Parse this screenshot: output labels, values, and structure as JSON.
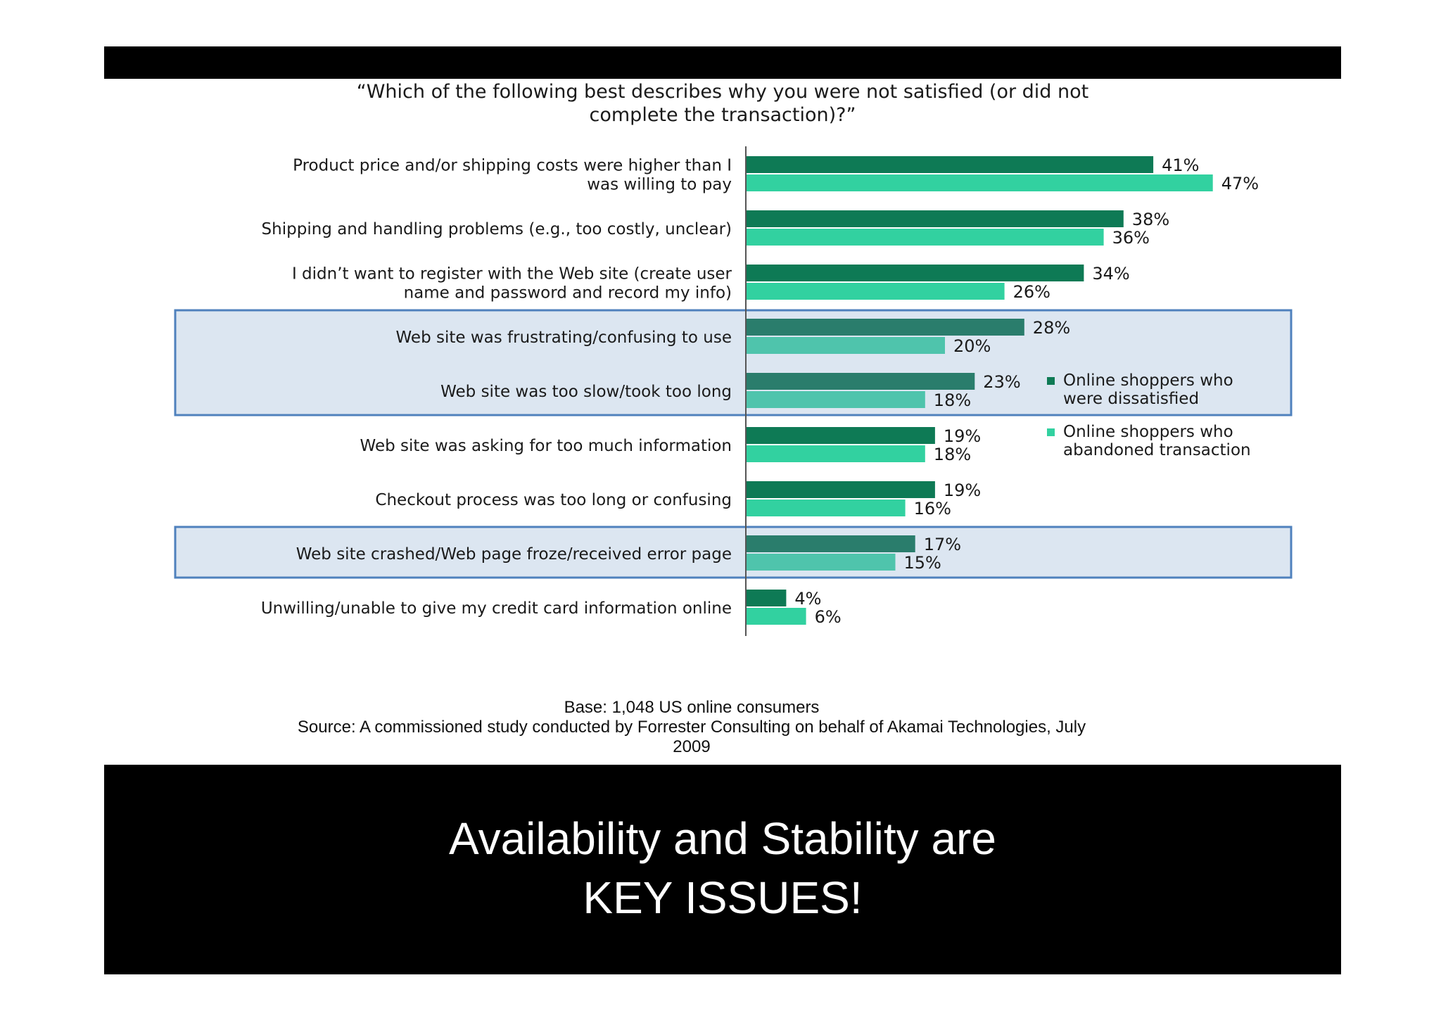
{
  "question": {
    "line1": "“Which of the following best describes why you were not satisfied (or did not",
    "line2": "complete the transaction)?”"
  },
  "chart_data": {
    "type": "bar",
    "orientation": "horizontal",
    "categories": [
      [
        "Product price and/or shipping costs were higher than I",
        "was willing to pay"
      ],
      [
        "Shipping and handling problems (e.g., too costly, unclear)"
      ],
      [
        "I didn’t want to register with the Web site (create user",
        "name and password and record my info)"
      ],
      [
        "Web site was frustrating/confusing to use"
      ],
      [
        "Web site was too slow/took too long"
      ],
      [
        "Web site was asking for too much information"
      ],
      [
        "Checkout process was too long or confusing"
      ],
      [
        "Web site crashed/Web page froze/received error page"
      ],
      [
        "Unwilling/unable to give my credit card information online"
      ]
    ],
    "series": [
      {
        "name": "Online shoppers who were dissatisfied",
        "legend_lines": [
          "Online shoppers who",
          "were dissatisfied"
        ],
        "color": "#0e7a55",
        "values": [
          41,
          38,
          34,
          28,
          23,
          19,
          19,
          17,
          4
        ]
      },
      {
        "name": "Online shoppers who abandoned transaction",
        "legend_lines": [
          "Online shoppers who",
          "abandoned transaction"
        ],
        "color": "#32d1a0",
        "values": [
          47,
          36,
          26,
          20,
          18,
          18,
          16,
          15,
          6
        ]
      }
    ],
    "value_suffix": "%",
    "xlim": [
      0,
      50
    ],
    "highlighted_categories": [
      [
        3,
        4
      ],
      [
        7
      ]
    ],
    "highlight_color": "#dce6f1",
    "highlight_border": "#4f81bd",
    "highlight_series_colors": [
      "#2a7d6c",
      "#4fc4ac"
    ],
    "legend_position": "right"
  },
  "footer": {
    "base": "Base: 1,048 US online consumers",
    "source1": "Source: A commissioned study conducted by Forrester Consulting on behalf of Akamai Technologies, July",
    "source2": "2009"
  },
  "takeaway": {
    "line1": "Availability and Stability are",
    "line2": "KEY ISSUES!"
  }
}
